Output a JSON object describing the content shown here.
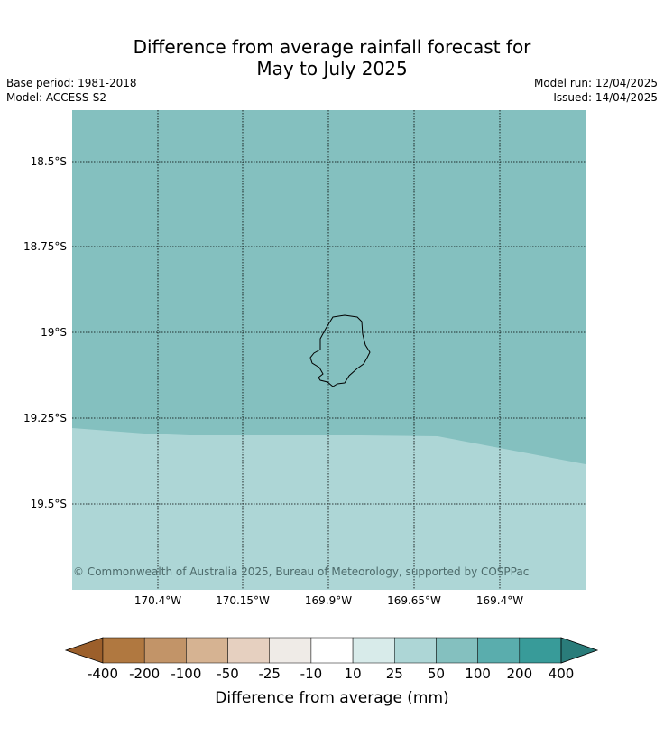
{
  "title": {
    "line1": "Difference from average rainfall forecast for",
    "line2": "May to July 2025"
  },
  "meta": {
    "base_period": "Base period: 1981-2018",
    "model": "Model: ACCESS-S2",
    "model_run": "Model run: 12/04/2025",
    "issued": "Issued: 14/04/2025"
  },
  "map": {
    "lat_labels": [
      "18.5°S",
      "18.75°S",
      "19°S",
      "19.25°S",
      "19.5°S"
    ],
    "lon_labels": [
      "170.4°W",
      "170.15°W",
      "169.9°W",
      "169.65°W",
      "169.4°W"
    ],
    "copyright": "© Commonwealth of Australia 2025, Bureau of Meteorology, supported by COSPPac",
    "regions": [
      {
        "name": "50 to 100 mm",
        "color": "#84c0bf"
      },
      {
        "name": "25 to 50 mm",
        "color": "#add6d6"
      }
    ],
    "island_outline_color": "#000000"
  },
  "colorbar": {
    "title": "Difference from average (mm)",
    "tick_labels": [
      "-400",
      "-200",
      "-100",
      "-50",
      "-25",
      "-10",
      "10",
      "25",
      "50",
      "100",
      "200",
      "400"
    ],
    "colors": [
      "#9c5f2b",
      "#b07840",
      "#c29468",
      "#d6b392",
      "#e6d0c0",
      "#efebe7",
      "#ffffff",
      "#d8ebea",
      "#add6d6",
      "#84c0bf",
      "#5aadad",
      "#389b99",
      "#2a7c7a"
    ]
  }
}
